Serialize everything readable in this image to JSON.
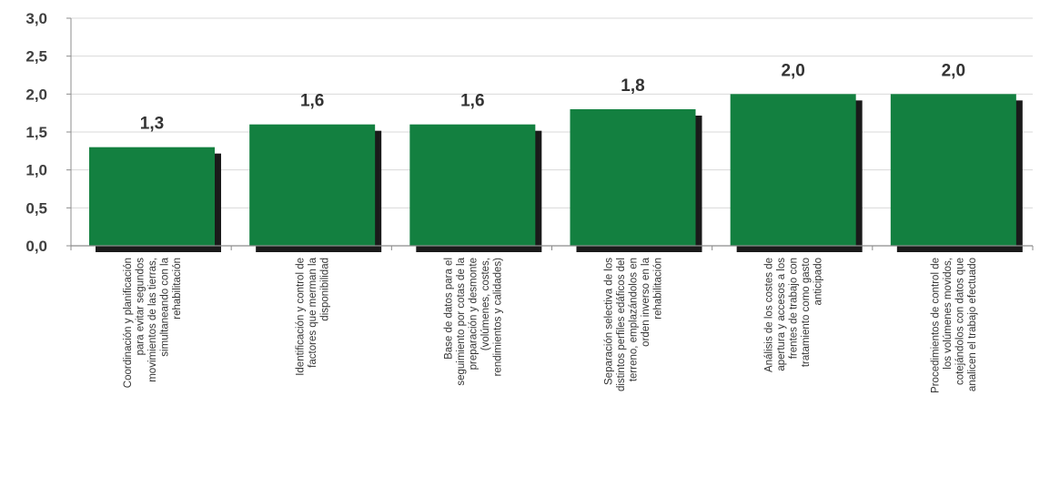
{
  "chart_data": {
    "type": "bar",
    "title": "",
    "xlabel": "",
    "ylabel": "",
    "ylim": [
      0,
      3.0
    ],
    "yticks": [
      "0,0",
      "0,5",
      "1,0",
      "1,5",
      "2,0",
      "2,5",
      "3,0"
    ],
    "yticks_values": [
      0,
      0.5,
      1.0,
      1.5,
      2.0,
      2.5,
      3.0
    ],
    "grid": true,
    "legend": "none",
    "bar_color": "#138040",
    "shadow_color": "#1a1a1a",
    "grid_color": "#d9d9d9",
    "categories": [
      [
        "Coordinación y planificación",
        "para evitar segundos",
        "movimientos de las tierras,",
        "simultaneando con la",
        "rehabilitación"
      ],
      [
        "Identificación y control de",
        "factores que merman la",
        "disponibilidad"
      ],
      [
        "Base de datos para el",
        "seguimiento por cotas de la",
        "preparación y desmonte",
        "(volúmenes, costes,",
        "rendimientos y calidades)"
      ],
      [
        "Separación selectiva de los",
        "distintos perfiles edáficos del",
        "terreno, emplazándolos en",
        "orden inverso en la",
        "rehabilitación"
      ],
      [
        "Análisis de los costes de",
        "apertura y accesos a los",
        "frentes de trabajo con",
        "tratamiento como gasto",
        "anticipado"
      ],
      [
        "Procedimientos de control de",
        "los volúmenes movidos,",
        "cotejándolos con datos que",
        "analicen el trabajo efectuado"
      ]
    ],
    "values": [
      1.3,
      1.6,
      1.6,
      1.8,
      2.0,
      2.0
    ],
    "data_labels": [
      "1,3",
      "1,6",
      "1,6",
      "1,8",
      "2,0",
      "2,0"
    ]
  }
}
